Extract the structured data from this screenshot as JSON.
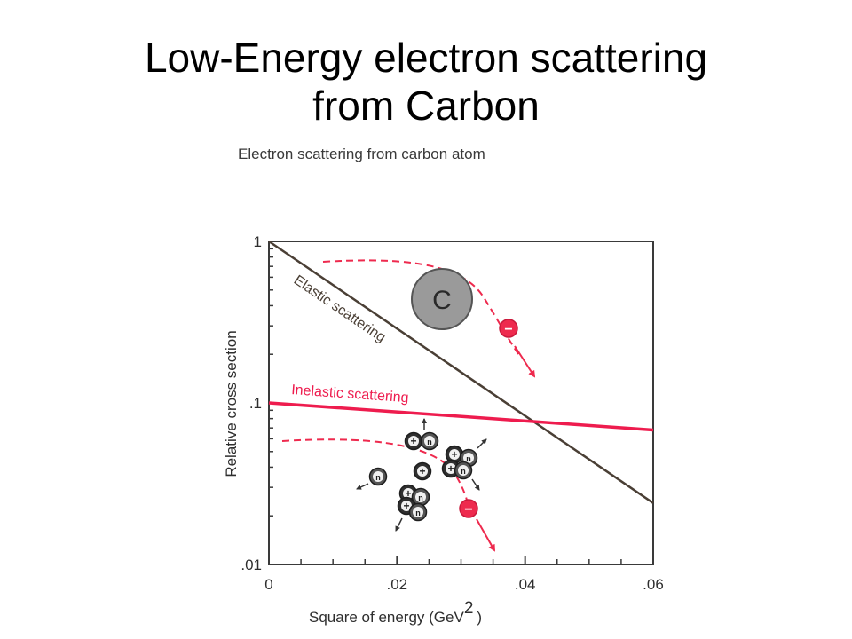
{
  "slide": {
    "title_line1": "Low-Energy electron scattering",
    "title_line2": "from Carbon"
  },
  "chart_data": {
    "type": "line",
    "title": "Electron scattering from carbon atom",
    "xlabel": "Square of energy (GeV",
    "xlabel_sup": "2",
    "xlabel_close": ")",
    "ylabel": "Relative cross section",
    "xlim": [
      0,
      0.06
    ],
    "ylim": [
      0.01,
      1
    ],
    "yscale": "log",
    "grid": false,
    "x_ticks": [
      0,
      0.02,
      0.04,
      0.06
    ],
    "x_tick_labels": [
      "0",
      ".02",
      ".04",
      ".06"
    ],
    "y_ticks": [
      1,
      0.1,
      0.01
    ],
    "y_tick_labels": [
      "1",
      ".1",
      ".01"
    ],
    "series": [
      {
        "name": "Elastic scattering",
        "color": "#4a3f35",
        "x": [
          0,
          0.06
        ],
        "y": [
          1.0,
          0.024
        ]
      },
      {
        "name": "Inelastic scattering",
        "color": "#ee1c4e",
        "x": [
          0,
          0.06
        ],
        "y": [
          0.1,
          0.068
        ]
      }
    ],
    "annotations": {
      "nucleus_label": "C",
      "electron_symbol": "−",
      "proton_symbol": "+",
      "neutron_symbol": "n",
      "colors": {
        "electron": "#ee2a4e",
        "nucleus": "#9a9a9a",
        "nucleon": "#333333"
      }
    }
  }
}
